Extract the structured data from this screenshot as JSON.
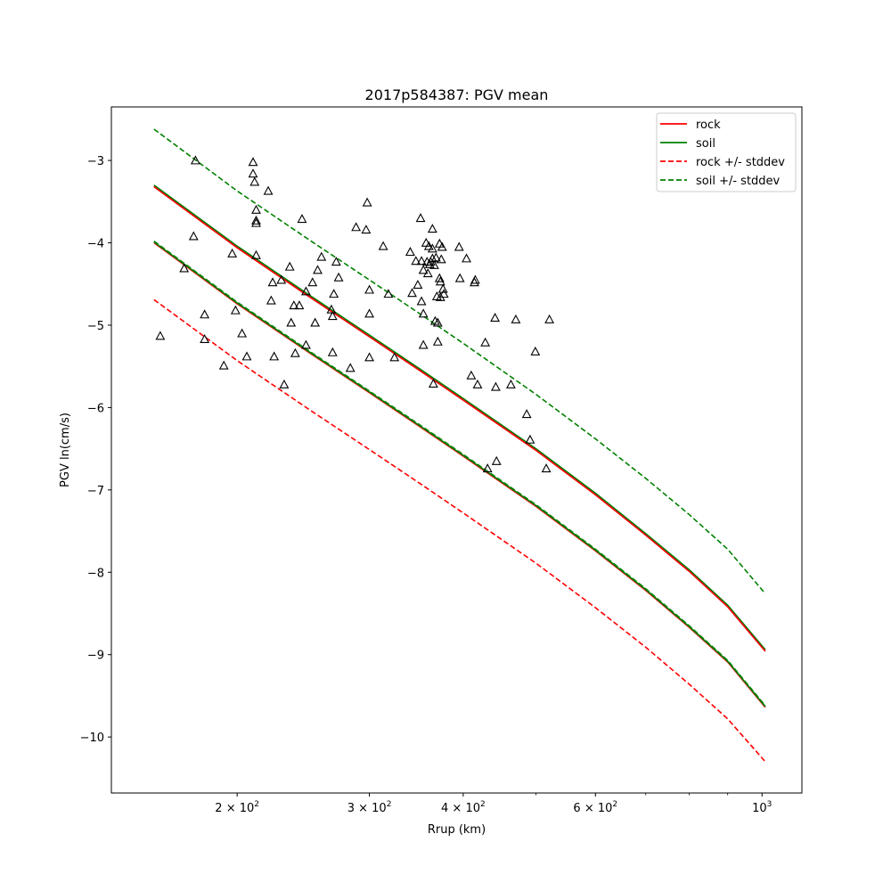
{
  "chart_data": {
    "type": "scatter",
    "title": "2017p584387: PGV mean",
    "xlabel": "Rrup (km)",
    "ylabel": "PGV ln(cm/s)",
    "x_scale": "log",
    "xlim": [
      136,
      1130
    ],
    "ylim": [
      -10.68,
      -2.35
    ],
    "grid": false,
    "legend_position": "top-right",
    "x_ticks": [
      {
        "value": 200,
        "base": "2 × 10",
        "exp": "2"
      },
      {
        "value": 300,
        "base": "3 × 10",
        "exp": "2"
      },
      {
        "value": 400,
        "base": "4 × 10",
        "exp": "2"
      },
      {
        "value": 600,
        "base": "6 × 10",
        "exp": "2"
      },
      {
        "value": 1000,
        "base": "10",
        "exp": "3"
      }
    ],
    "x_minor_ticks": [
      500,
      700,
      800,
      900
    ],
    "y_ticks": [
      {
        "value": -3,
        "label": "−3"
      },
      {
        "value": -4,
        "label": "−4"
      },
      {
        "value": -5,
        "label": "−5"
      },
      {
        "value": -6,
        "label": "−6"
      },
      {
        "value": -7,
        "label": "−7"
      },
      {
        "value": -8,
        "label": "−8"
      },
      {
        "value": -9,
        "label": "−9"
      },
      {
        "value": -10,
        "label": "−10"
      }
    ],
    "legend": [
      {
        "label": "rock",
        "color": "#ff0000",
        "dashed": false
      },
      {
        "label": "soil",
        "color": "#008000",
        "dashed": false
      },
      {
        "label": "rock +/- stddev",
        "color": "#ff0000",
        "dashed": true
      },
      {
        "label": "soil +/- stddev",
        "color": "#008000",
        "dashed": true
      }
    ],
    "lines": [
      {
        "name": "soil +/- stddev",
        "kind": "soil_upper",
        "color": "#008000",
        "dashed": true,
        "width": 1.6,
        "x": [
          155,
          200,
          250,
          300,
          350,
          400,
          500,
          600,
          700,
          800,
          900,
          1010
        ],
        "y": [
          -2.62,
          -3.37,
          -3.97,
          -4.45,
          -4.86,
          -5.22,
          -5.84,
          -6.38,
          -6.86,
          -7.3,
          -7.72,
          -8.26
        ]
      },
      {
        "name": "rock",
        "kind": "rock_upper",
        "color": "#ff0000",
        "dashed": true,
        "width": 1.6,
        "x": [
          155,
          200,
          250,
          300,
          350,
          400,
          500,
          600,
          700,
          800,
          900,
          1010
        ],
        "y": [
          -3.31,
          -4.05,
          -4.65,
          -5.13,
          -5.54,
          -5.9,
          -6.51,
          -7.05,
          -7.54,
          -7.98,
          -8.41,
          -8.95
        ]
      },
      {
        "name": "soil",
        "kind": "soil_upper_mean",
        "color": "#008000",
        "dashed": false,
        "width": 1.6,
        "x": [
          155,
          200,
          250,
          300,
          350,
          400,
          500,
          600,
          700,
          800,
          900,
          1010
        ],
        "y": [
          -3.3,
          -4.04,
          -4.64,
          -5.12,
          -5.53,
          -5.89,
          -6.5,
          -7.04,
          -7.53,
          -7.97,
          -8.4,
          -8.94
        ]
      },
      {
        "name": "rock",
        "kind": "rock_mean",
        "color": "#ff0000",
        "dashed": false,
        "width": 1.6,
        "x": [
          155,
          200,
          250,
          300,
          350,
          400,
          500,
          600,
          700,
          800,
          900,
          1010
        ],
        "y": [
          -3.32,
          -4.06,
          -4.66,
          -5.14,
          -5.55,
          -5.91,
          -6.52,
          -7.06,
          -7.55,
          -7.99,
          -8.42,
          -8.96
        ]
      },
      {
        "name": "rock",
        "kind": "rock_mean_low",
        "color": "#ff0000",
        "dashed": false,
        "width": 1.6,
        "x": [
          155,
          200,
          250,
          300,
          350,
          400,
          500,
          600,
          700,
          800,
          900,
          1010
        ],
        "y": [
          -4.0,
          -4.74,
          -5.34,
          -5.82,
          -6.23,
          -6.59,
          -7.2,
          -7.74,
          -8.22,
          -8.67,
          -9.09,
          -9.64
        ]
      },
      {
        "name": "soil",
        "kind": "soil_mean",
        "color": "#008000",
        "dashed": false,
        "width": 1.6,
        "x": [
          155,
          200,
          250,
          300,
          350,
          400,
          500,
          600,
          700,
          800,
          900,
          1010
        ],
        "y": [
          -3.99,
          -4.73,
          -5.33,
          -5.81,
          -6.22,
          -6.58,
          -7.19,
          -7.73,
          -8.21,
          -8.66,
          -9.08,
          -9.63
        ]
      },
      {
        "name": "soil +/- stddev",
        "kind": "soil_lower",
        "color": "#008000",
        "dashed": true,
        "width": 1.6,
        "x": [
          155,
          200,
          250,
          300,
          350,
          400,
          500,
          600,
          700,
          800,
          900,
          1010
        ],
        "y": [
          -3.98,
          -4.72,
          -5.32,
          -5.8,
          -6.21,
          -6.57,
          -7.18,
          -7.72,
          -8.2,
          -8.65,
          -9.07,
          -9.62
        ]
      },
      {
        "name": "rock +/- stddev",
        "kind": "rock_lower",
        "color": "#ff0000",
        "dashed": true,
        "width": 1.6,
        "x": [
          155,
          200,
          250,
          300,
          350,
          400,
          500,
          600,
          700,
          800,
          900,
          1010
        ],
        "y": [
          -4.69,
          -5.43,
          -6.03,
          -6.51,
          -6.92,
          -7.28,
          -7.89,
          -8.43,
          -8.91,
          -9.36,
          -9.78,
          -10.3
        ]
      }
    ],
    "points": [
      [
        158,
        -5.13
      ],
      [
        176,
        -3.0
      ],
      [
        170,
        -4.31
      ],
      [
        175,
        -3.92
      ],
      [
        181,
        -4.87
      ],
      [
        181,
        -5.17
      ],
      [
        192,
        -5.49
      ],
      [
        197,
        -4.13
      ],
      [
        199,
        -4.82
      ],
      [
        203,
        -5.1
      ],
      [
        206,
        -5.38
      ],
      [
        210,
        -3.02
      ],
      [
        210,
        -3.16
      ],
      [
        211,
        -3.26
      ],
      [
        212,
        -3.6
      ],
      [
        212,
        -3.73
      ],
      [
        212,
        -3.76
      ],
      [
        212,
        -4.15
      ],
      [
        220,
        -3.37
      ],
      [
        222,
        -4.7
      ],
      [
        223,
        -4.48
      ],
      [
        224,
        -5.38
      ],
      [
        229,
        -4.45
      ],
      [
        231,
        -5.72
      ],
      [
        235,
        -4.29
      ],
      [
        236,
        -4.97
      ],
      [
        238,
        -4.76
      ],
      [
        239,
        -5.34
      ],
      [
        242,
        -4.76
      ],
      [
        244,
        -3.71
      ],
      [
        247,
        -4.59
      ],
      [
        247,
        -5.24
      ],
      [
        252,
        -4.48
      ],
      [
        254,
        -4.97
      ],
      [
        256,
        -4.33
      ],
      [
        259,
        -4.17
      ],
      [
        267,
        -4.81
      ],
      [
        268,
        -4.89
      ],
      [
        268,
        -5.33
      ],
      [
        269,
        -4.62
      ],
      [
        271,
        -4.23
      ],
      [
        273,
        -4.42
      ],
      [
        283,
        -5.52
      ],
      [
        288,
        -3.81
      ],
      [
        297,
        -3.84
      ],
      [
        298,
        -3.51
      ],
      [
        300,
        -4.57
      ],
      [
        300,
        -4.86
      ],
      [
        300,
        -5.39
      ],
      [
        313,
        -4.04
      ],
      [
        318,
        -4.62
      ],
      [
        324,
        -5.39
      ],
      [
        340,
        -4.11
      ],
      [
        342,
        -4.61
      ],
      [
        346,
        -4.22
      ],
      [
        348,
        -4.51
      ],
      [
        351,
        -3.7
      ],
      [
        352,
        -4.22
      ],
      [
        352,
        -4.71
      ],
      [
        354,
        -4.33
      ],
      [
        354,
        -4.86
      ],
      [
        354,
        -5.24
      ],
      [
        357,
        -4.0
      ],
      [
        358,
        -4.23
      ],
      [
        359,
        -4.37
      ],
      [
        360,
        -4.04
      ],
      [
        361,
        -4.26
      ],
      [
        362,
        -4.23
      ],
      [
        364,
        -3.83
      ],
      [
        364,
        -4.07
      ],
      [
        364,
        -4.19
      ],
      [
        365,
        -5.71
      ],
      [
        366,
        -4.27
      ],
      [
        367,
        -4.95
      ],
      [
        368,
        -4.18
      ],
      [
        369,
        -4.65
      ],
      [
        370,
        -4.97
      ],
      [
        370,
        -5.2
      ],
      [
        372,
        -4.01
      ],
      [
        372,
        -4.43
      ],
      [
        373,
        -4.47
      ],
      [
        373,
        -4.66
      ],
      [
        374,
        -4.2
      ],
      [
        375,
        -4.05
      ],
      [
        376,
        -4.56
      ],
      [
        377,
        -4.62
      ],
      [
        395,
        -4.05
      ],
      [
        396,
        -4.43
      ],
      [
        404,
        -4.19
      ],
      [
        410,
        -5.61
      ],
      [
        414,
        -4.48
      ],
      [
        415,
        -4.45
      ],
      [
        418,
        -5.72
      ],
      [
        428,
        -5.21
      ],
      [
        431,
        -6.74
      ],
      [
        441,
        -4.91
      ],
      [
        442,
        -5.75
      ],
      [
        443,
        -6.65
      ],
      [
        463,
        -5.72
      ],
      [
        470,
        -4.93
      ],
      [
        486,
        -6.08
      ],
      [
        491,
        -6.39
      ],
      [
        499,
        -5.32
      ],
      [
        516,
        -6.74
      ],
      [
        521,
        -4.93
      ]
    ]
  }
}
